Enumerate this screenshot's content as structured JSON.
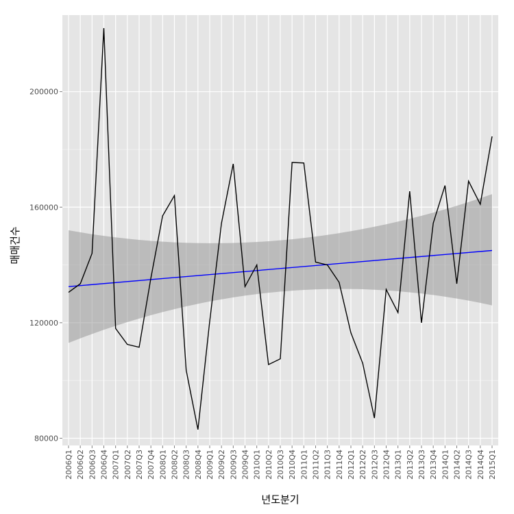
{
  "chart_data": {
    "type": "line",
    "xlabel": "년도분기",
    "ylabel": "매매건수",
    "x": [
      "2006Q1",
      "2006Q2",
      "2006Q3",
      "2006Q4",
      "2007Q1",
      "2007Q2",
      "2007Q3",
      "2007Q4",
      "2008Q1",
      "2008Q2",
      "2008Q3",
      "2008Q4",
      "2009Q1",
      "2009Q2",
      "2009Q3",
      "2009Q4",
      "2010Q1",
      "2010Q2",
      "2010Q3",
      "2010Q4",
      "2011Q1",
      "2011Q2",
      "2011Q3",
      "2011Q4",
      "2012Q1",
      "2012Q2",
      "2012Q3",
      "2012Q4",
      "2013Q1",
      "2013Q2",
      "2013Q3",
      "2013Q4",
      "2014Q1",
      "2014Q2",
      "2014Q3",
      "2014Q4",
      "2015Q1"
    ],
    "series": [
      {
        "values": [
          130500,
          133500,
          144000,
          222000,
          118000,
          112500,
          111500,
          135500,
          157000,
          164000,
          103500,
          83000,
          120500,
          154500,
          175000,
          132500,
          140000,
          105500,
          107500,
          175500,
          175300,
          141000,
          140000,
          134000,
          116500,
          106000,
          87000,
          131500,
          123500,
          165500,
          120000,
          154500,
          167500,
          133500,
          169000,
          161000,
          184500
        ]
      }
    ],
    "trend": {
      "method": "linear",
      "start": 132500,
      "end": 145000,
      "band_upper_start": 152000,
      "band_upper_min": 148000,
      "band_upper_end": 164500,
      "band_lower_start": 113000,
      "band_lower_max": 130000,
      "band_lower_end": 126000
    },
    "ylim": [
      77500,
      226500
    ],
    "yticks": [
      80000,
      120000,
      160000,
      200000
    ],
    "ytick_labels": [
      "80000",
      "120000",
      "160000",
      "200000"
    ],
    "grid": true,
    "colors": {
      "panel_background": "#e5e5e5",
      "grid_major": "#ffffff",
      "grid_minor": "#f2f2f2",
      "series_line": "#000000",
      "trend_line": "#0000ff",
      "confidence_band": "#999999"
    }
  }
}
